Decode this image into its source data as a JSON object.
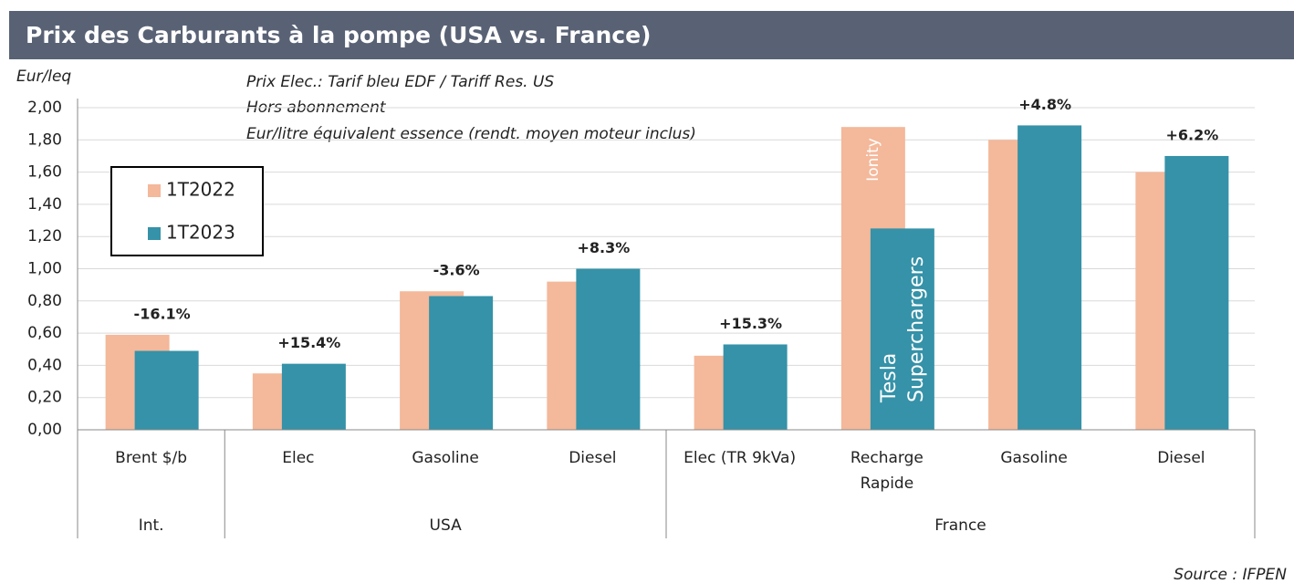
{
  "chart_data": {
    "type": "bar",
    "title": "Prix des Carburants à la pompe (USA vs. France)",
    "y_axis_label": "Eur/leq",
    "notes": [
      "Prix Elec.: Tarif bleu EDF / Tariff Res. US",
      "Hors abonnement",
      "Eur/litre équivalent essence (rendt. moyen moteur inclus)"
    ],
    "source": "Source : IFPEN",
    "categories": [
      "Brent $/b",
      "Elec",
      "Gasoline",
      "Diesel",
      "Elec (TR 9kVa)",
      "Recharge\nRapide",
      "Gasoline",
      "Diesel"
    ],
    "groups": [
      {
        "label": "Int.",
        "count": 1
      },
      {
        "label": "USA",
        "count": 3
      },
      {
        "label": "France",
        "count": 4
      }
    ],
    "series": [
      {
        "name": "1T2022",
        "color": "#f4b89a",
        "values": [
          0.59,
          0.35,
          0.86,
          0.92,
          0.46,
          1.88,
          1.8,
          1.6
        ]
      },
      {
        "name": "1T2023",
        "color": "#3592a8",
        "values": [
          0.49,
          0.41,
          0.83,
          1.0,
          0.53,
          1.25,
          1.89,
          1.7
        ]
      }
    ],
    "change_labels": [
      "-16.1%",
      "+15.4%",
      "-3.6%",
      "+8.3%",
      "+15.3%",
      null,
      "+4.8%",
      "+6.2%"
    ],
    "bar_annotations": [
      {
        "text": "Ionity",
        "series": 0,
        "category": 5
      },
      {
        "text": "Tesla\nSuperchargers",
        "series": 1,
        "category": 5
      }
    ],
    "ylim": [
      0,
      2
    ],
    "yticks": [
      {
        "value": 0,
        "label": "0,00"
      },
      {
        "value": 0.2,
        "label": "0,20"
      },
      {
        "value": 0.4,
        "label": "0,40"
      },
      {
        "value": 0.6,
        "label": "0,60"
      },
      {
        "value": 0.8,
        "label": "0,80"
      },
      {
        "value": 1,
        "label": "1,00"
      },
      {
        "value": 1.2,
        "label": "1,20"
      },
      {
        "value": 1.4,
        "label": "1,40"
      },
      {
        "value": 1.6,
        "label": "1,60"
      },
      {
        "value": 1.8,
        "label": "1,80"
      },
      {
        "value": 2,
        "label": "2,00"
      }
    ],
    "grid": true,
    "legend": "upper-left"
  }
}
